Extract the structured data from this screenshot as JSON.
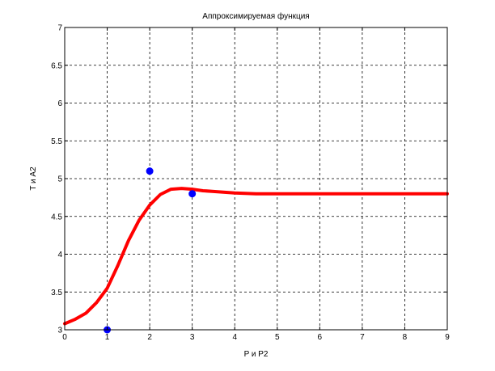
{
  "chart_data": {
    "type": "line",
    "title": "Аппроксимируемая функция",
    "xlabel": "P и P2",
    "ylabel": "T и A2",
    "xlim": [
      0,
      9
    ],
    "ylim": [
      3,
      7
    ],
    "x_ticks": [
      0,
      1,
      2,
      3,
      4,
      5,
      6,
      7,
      8,
      9
    ],
    "y_ticks": [
      3,
      3.5,
      4,
      4.5,
      5,
      5.5,
      6,
      6.5,
      7
    ],
    "x_tick_labels": [
      "0",
      "1",
      "2",
      "3",
      "4",
      "5",
      "6",
      "7",
      "8",
      "9"
    ],
    "y_tick_labels": [
      "3",
      "3.5",
      "4",
      "4.5",
      "5",
      "5.5",
      "6",
      "6.5",
      "7"
    ],
    "grid": true,
    "series": [
      {
        "type": "scatter",
        "color": "#0000ff",
        "x": [
          1,
          2,
          3
        ],
        "y": [
          3.0,
          5.1,
          4.8
        ]
      },
      {
        "type": "line",
        "color": "#ff0000",
        "x": [
          0,
          0.25,
          0.5,
          0.75,
          1.0,
          1.25,
          1.5,
          1.75,
          2.0,
          2.25,
          2.5,
          2.75,
          3.0,
          3.25,
          3.5,
          4.0,
          4.5,
          5,
          6,
          7,
          8,
          9
        ],
        "y": [
          3.08,
          3.14,
          3.22,
          3.36,
          3.55,
          3.85,
          4.18,
          4.45,
          4.65,
          4.79,
          4.86,
          4.87,
          4.86,
          4.84,
          4.83,
          4.81,
          4.8,
          4.8,
          4.8,
          4.8,
          4.8,
          4.8
        ]
      }
    ]
  }
}
